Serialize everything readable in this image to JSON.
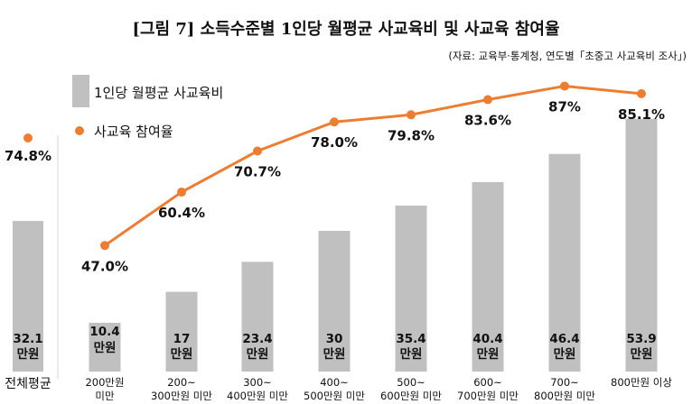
{
  "chart_data": {
    "type": "bar",
    "title": "[그림 7] 소득수준별 1인당 월평균 사교육비 및 사교육 참여율",
    "source": "(자료: 교육부·통계청, 연도별「초중고 사교육비 조사」)",
    "legend": [
      "1인당 월평균 사교육비",
      "사교육 참여율"
    ],
    "total": {
      "label": "전체평균",
      "spending": 32.1,
      "spending_value_label": "32.1",
      "participation": 74.8,
      "participation_label": "74.8%"
    },
    "categories": [
      [
        "200만원",
        "미만"
      ],
      [
        "200~",
        "300만원 미만"
      ],
      [
        "300~",
        "400만원 미만"
      ],
      [
        "400~",
        "500만원 미만"
      ],
      [
        "500~",
        "600만원 미만"
      ],
      [
        "600~",
        "700만원 미만"
      ],
      [
        "700~",
        "800만원 미만"
      ],
      [
        "800만원 이상"
      ]
    ],
    "series": [
      {
        "name": "1인당 월평균 사교육비",
        "type": "bar",
        "unit": "만원",
        "values": [
          10.4,
          17,
          23.4,
          30,
          35.4,
          40.4,
          46.4,
          53.9
        ],
        "value_labels": [
          "10.4",
          "17",
          "23.4",
          "30",
          "35.4",
          "40.4",
          "46.4",
          "53.9"
        ]
      },
      {
        "name": "사교육 참여율",
        "type": "line",
        "unit": "%",
        "values": [
          47.0,
          60.4,
          70.7,
          78.0,
          79.8,
          83.6,
          87.0,
          85.1
        ],
        "value_labels": [
          "47.0%",
          "60.4%",
          "70.7%",
          "78.0%",
          "79.8%",
          "83.6%",
          "87%",
          "85.1%"
        ]
      }
    ],
    "ylim_bar": [
      0,
      55
    ],
    "ylim_line": [
      0,
      100
    ],
    "colors": {
      "bar": "#c0c0c0",
      "line": "#ed7d31",
      "divider": "#d6d6d6"
    }
  }
}
